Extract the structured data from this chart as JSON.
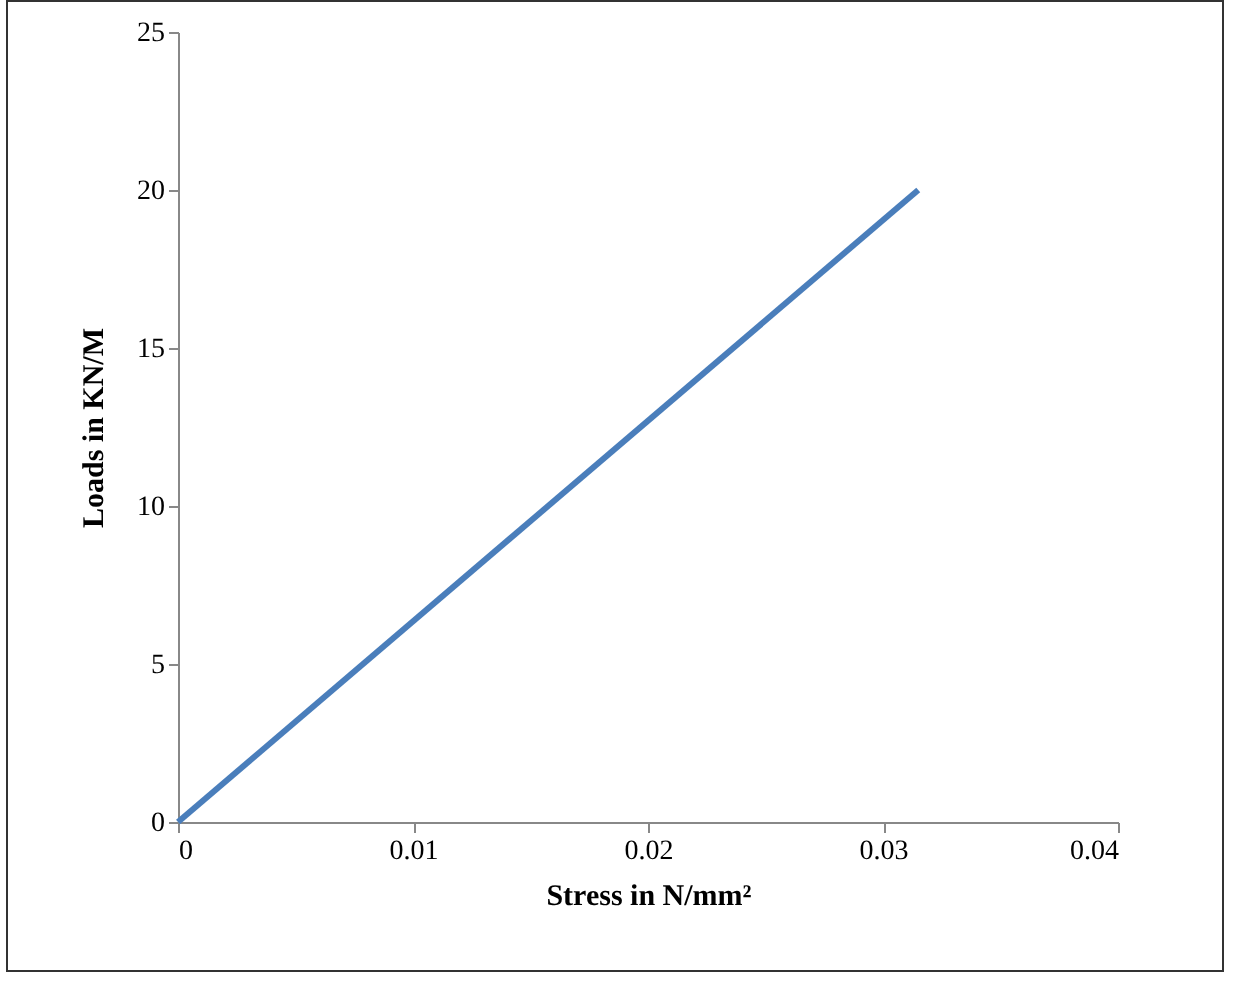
{
  "chart_data": {
    "type": "line",
    "xlabel": "Stress in N/mm²",
    "ylabel": "Loads in KN/M",
    "x": [
      0,
      0.0315
    ],
    "series": [
      {
        "color": "#4a7ebb",
        "values": [
          0,
          20
        ]
      }
    ],
    "xlim": [
      0,
      0.04
    ],
    "xticks": [
      0,
      0.01,
      0.02,
      0.03,
      0.04
    ],
    "ylim": [
      0,
      25
    ],
    "yticks": [
      0,
      5,
      10,
      15,
      20,
      25
    ],
    "grid": false,
    "marker": "none",
    "line_style": "solid"
  }
}
